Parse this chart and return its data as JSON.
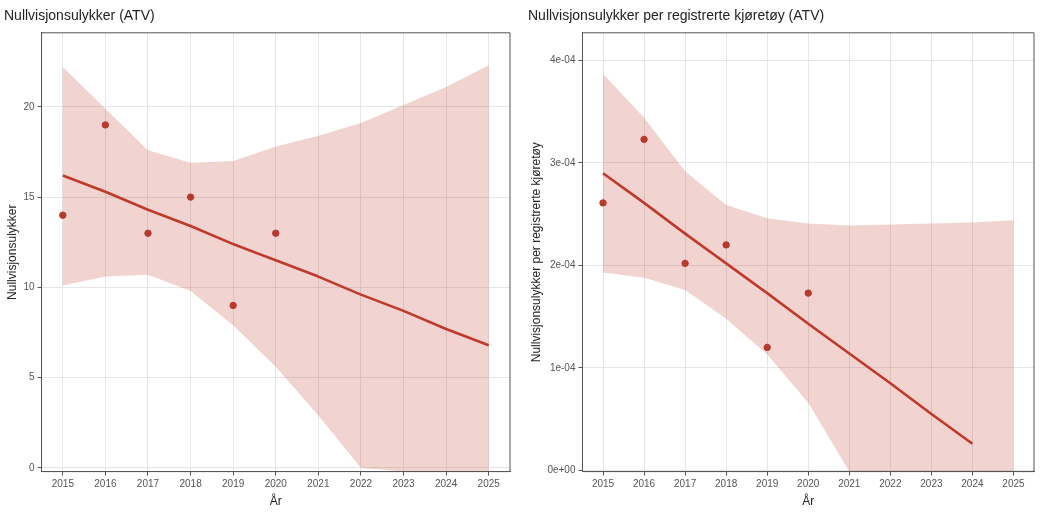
{
  "chart_data": [
    {
      "type": "scatter",
      "title": "Nullvisjonsulykker (ATV)",
      "xlabel": "År",
      "ylabel": "Nullvisjonsulykker",
      "x": [
        2015,
        2016,
        2017,
        2018,
        2019,
        2020
      ],
      "xlim": [
        2014.5,
        2025.5
      ],
      "xticks": [
        2015,
        2016,
        2017,
        2018,
        2019,
        2020,
        2021,
        2022,
        2023,
        2024,
        2025
      ],
      "ylim": [
        -0.2,
        24.1
      ],
      "yticks": [
        0,
        5,
        10,
        15,
        20
      ],
      "grid": true,
      "legend": false,
      "marker": "circle",
      "series": [
        {
          "color": "#b83a2e",
          "values": [
            14,
            19,
            13,
            15,
            9,
            13
          ]
        },
        {
          "type": "line",
          "color": "#c0392b",
          "marker": "none",
          "x": [
            2015,
            2016,
            2017,
            2018,
            2019,
            2020,
            2021,
            2022,
            2023,
            2024,
            2025
          ],
          "values": [
            16.2,
            15.3,
            14.3,
            13.4,
            12.4,
            11.5,
            10.6,
            9.6,
            8.7,
            7.7,
            6.8
          ],
          "lower": [
            10.1,
            10.6,
            10.7,
            9.8,
            7.9,
            5.6,
            2.9,
            0,
            -0.2,
            -0.2,
            -0.2
          ],
          "upper": [
            22.2,
            19.9,
            17.6,
            16.9,
            17.0,
            17.8,
            18.4,
            19.1,
            20.1,
            21.1,
            22.3
          ]
        }
      ]
    },
    {
      "type": "scatter",
      "title": "Nullvisjonsulykker per registrerte kjøretøy (ATV)",
      "xlabel": "År",
      "ylabel": "Nullvisjonsulykker per registrerte kjøretøy",
      "x": [
        2015,
        2016,
        2017,
        2018,
        2019,
        2020
      ],
      "xlim": [
        2014.5,
        2025.5
      ],
      "xticks": [
        2015,
        2016,
        2017,
        2018,
        2019,
        2020,
        2021,
        2022,
        2023,
        2024,
        2025
      ],
      "ylim": [
        -1.2e-06,
        0.000427
      ],
      "yticks": [
        {
          "value": 0,
          "label": "0e+00"
        },
        {
          "value": 0.0001,
          "label": "1e-04"
        },
        {
          "value": 0.0002,
          "label": "2e-04"
        },
        {
          "value": 0.0003,
          "label": "3e-04"
        },
        {
          "value": 0.0004,
          "label": "4e-04"
        }
      ],
      "grid": true,
      "legend": false,
      "marker": "circle",
      "series": [
        {
          "color": "#b83a2e",
          "values": [
            0.000261,
            0.000323,
            0.000202,
            0.00022,
            0.00012,
            0.000173
          ]
        },
        {
          "type": "line",
          "color": "#c0392b",
          "x": [
            2015,
            2016,
            2017,
            2018,
            2019,
            2020,
            2021,
            2022,
            2023,
            2024,
            2025
          ],
          "marker": "none",
          "values": [
            0.00029,
            0.000261,
            0.000231,
            0.000202,
            0.000173,
            0.000143,
            0.000114,
            8.5e-05,
            5.5e-05,
            2.6e-05,
            null
          ],
          "lower": [
            0.000193,
            0.000188,
            0.000176,
            0.000148,
            0.000113,
            6.6e-05,
            -1.2e-06,
            -1.2e-06,
            -1.2e-06,
            -1.2e-06,
            -1.2e-06
          ],
          "upper": [
            0.000387,
            0.000344,
            0.000292,
            0.000259,
            0.000246,
            0.000241,
            0.000239,
            0.00024,
            0.000241,
            0.000242,
            0.000244
          ]
        }
      ]
    }
  ]
}
